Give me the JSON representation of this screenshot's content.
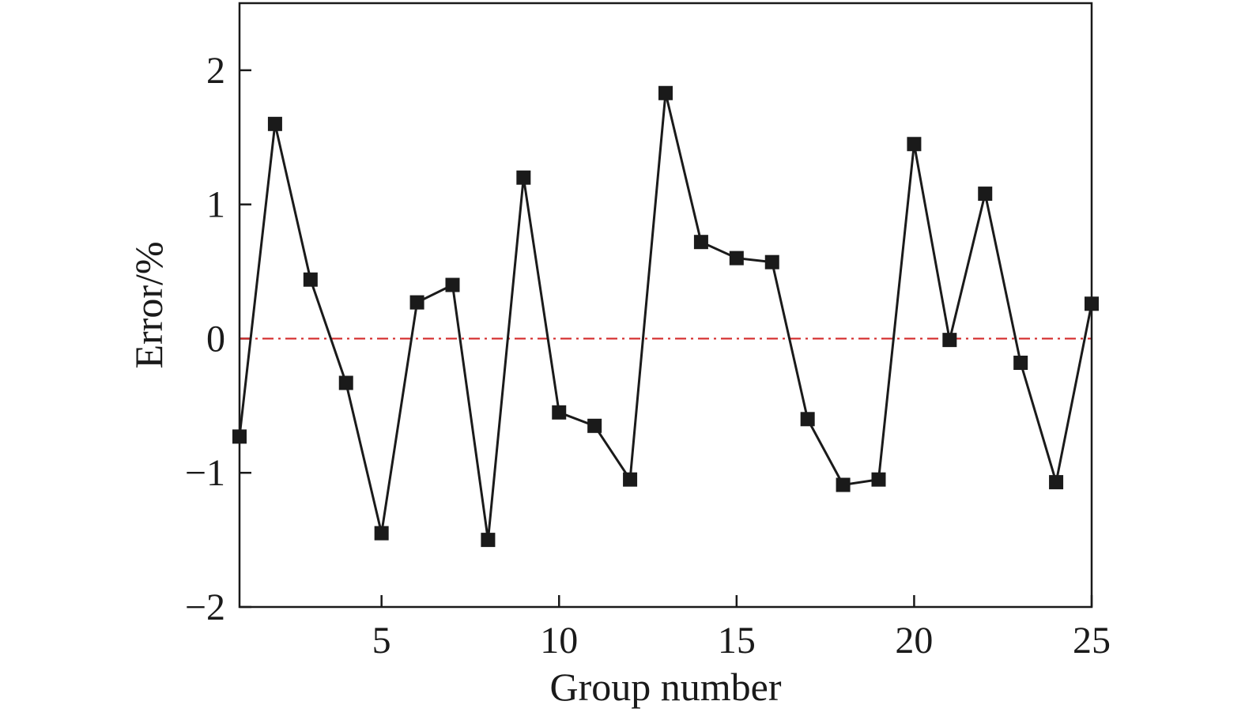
{
  "chart_data": {
    "type": "line",
    "title": "",
    "xlabel": "Group number",
    "ylabel": "Error/%",
    "xlim": [
      1,
      25
    ],
    "ylim": [
      -2,
      2.5
    ],
    "x_ticks": [
      5,
      10,
      15,
      20,
      25
    ],
    "x_tick_labels": [
      "5",
      "10",
      "15",
      "20",
      "25"
    ],
    "y_ticks": [
      -2,
      -1,
      0,
      1,
      2
    ],
    "y_tick_labels": [
      "−2",
      "−1",
      "0",
      "1",
      "2"
    ],
    "grid": false,
    "legend": "none",
    "reference_line": {
      "y": 0,
      "style": "dash-dot",
      "color": "#d42a2a"
    },
    "series": [
      {
        "marker": "square",
        "color": "#1a1a1a",
        "x": [
          1,
          2,
          3,
          4,
          5,
          6,
          7,
          8,
          9,
          10,
          11,
          12,
          13,
          14,
          15,
          16,
          17,
          18,
          19,
          20,
          21,
          22,
          23,
          24,
          25
        ],
        "y": [
          -0.73,
          1.6,
          0.44,
          -0.33,
          -1.45,
          0.27,
          0.4,
          -1.5,
          1.2,
          -0.55,
          -0.65,
          -1.05,
          1.83,
          0.72,
          0.6,
          0.57,
          -0.6,
          -1.09,
          -1.05,
          1.45,
          -0.01,
          1.08,
          -0.18,
          -1.07,
          0.26
        ]
      }
    ]
  }
}
